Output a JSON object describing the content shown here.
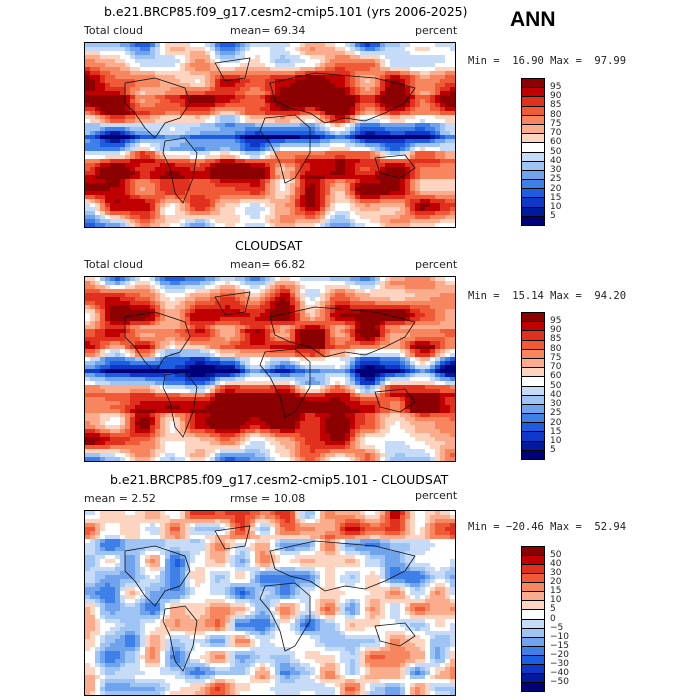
{
  "season_label": "ANN",
  "panels": [
    {
      "title": "b.e21.BRCP85.f09_g17.cesm2-cmip5.101 (yrs 2006-2025)",
      "left_label": "Total cloud",
      "mean_label": "mean=  69.34",
      "units": "percent",
      "minmax": "Min =  16.90 Max =  97.99",
      "colorbar_labels": [
        "95",
        "90",
        "85",
        "80",
        "75",
        "70",
        "60",
        "50",
        "40",
        "30",
        "25",
        "20",
        "15",
        "10",
        "5"
      ],
      "colorbar_colors": [
        "#8b0000",
        "#c00000",
        "#e0301e",
        "#f05a36",
        "#f7855e",
        "#fbac8c",
        "#fdd4bf",
        "#ffffff",
        "#c6dbf7",
        "#9ec3f5",
        "#6fa3ee",
        "#3f7fe8",
        "#1f5de0",
        "#1038c8",
        "#001a9c",
        "#000078"
      ]
    },
    {
      "title": "CLOUDSAT",
      "left_label": "Total cloud",
      "mean_label": "mean=  66.82",
      "units": "percent",
      "minmax": "Min =  15.14 Max =  94.20",
      "colorbar_labels": [
        "95",
        "90",
        "85",
        "80",
        "75",
        "70",
        "60",
        "50",
        "40",
        "30",
        "25",
        "20",
        "15",
        "10",
        "5"
      ],
      "colorbar_colors": [
        "#8b0000",
        "#c00000",
        "#e0301e",
        "#f05a36",
        "#f7855e",
        "#fbac8c",
        "#fdd4bf",
        "#ffffff",
        "#c6dbf7",
        "#9ec3f5",
        "#6fa3ee",
        "#3f7fe8",
        "#1f5de0",
        "#1038c8",
        "#001a9c",
        "#000078"
      ]
    },
    {
      "title": "b.e21.BRCP85.f09_g17.cesm2-cmip5.101 - CLOUDSAT",
      "left_label": "mean =   2.52",
      "mean_label": "rmse =  10.08",
      "units": "percent",
      "minmax": "Min = −20.46 Max =  52.94",
      "colorbar_labels": [
        "50",
        "40",
        "30",
        "20",
        "15",
        "10",
        "5",
        "0",
        "−5",
        "−10",
        "−15",
        "−20",
        "−30",
        "−40",
        "−50"
      ],
      "colorbar_colors": [
        "#8b0000",
        "#c00000",
        "#e0301e",
        "#f05a36",
        "#f7855e",
        "#fbac8c",
        "#fdd4bf",
        "#ffffff",
        "#c6dbf7",
        "#9ec3f5",
        "#6fa3ee",
        "#3f7fe8",
        "#1f5de0",
        "#1038c8",
        "#001a9c",
        "#000078"
      ]
    }
  ]
}
